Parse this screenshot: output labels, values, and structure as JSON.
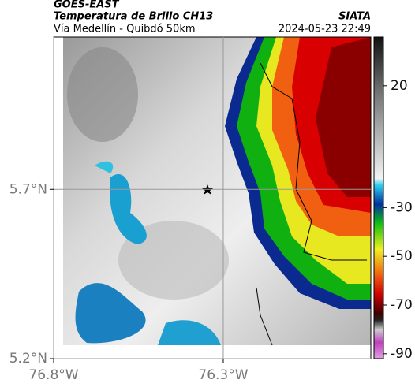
{
  "header": {
    "source": "GOES-EAST",
    "title": "Temperatura de Brillo CH13",
    "org": "SIATA",
    "subtitle": "Vía Medellín - Quibdó 50km",
    "timestamp": "2024-05-23 22:49"
  },
  "map": {
    "lonlim": [
      -76.8,
      -75.865
    ],
    "latlim": [
      5.2,
      6.15
    ],
    "lonticks": [
      {
        "value": -76.8,
        "label": "76.8°W"
      },
      {
        "value": -76.3,
        "label": "76.3°W"
      }
    ],
    "latticks": [
      {
        "value": 5.2,
        "label": "5.2°N"
      },
      {
        "value": 5.7,
        "label": "5.7°N"
      }
    ]
  },
  "colorbar": {
    "range": [
      -92,
      40
    ],
    "ticks": [
      20,
      -30,
      -50,
      -70,
      -90
    ]
  }
}
